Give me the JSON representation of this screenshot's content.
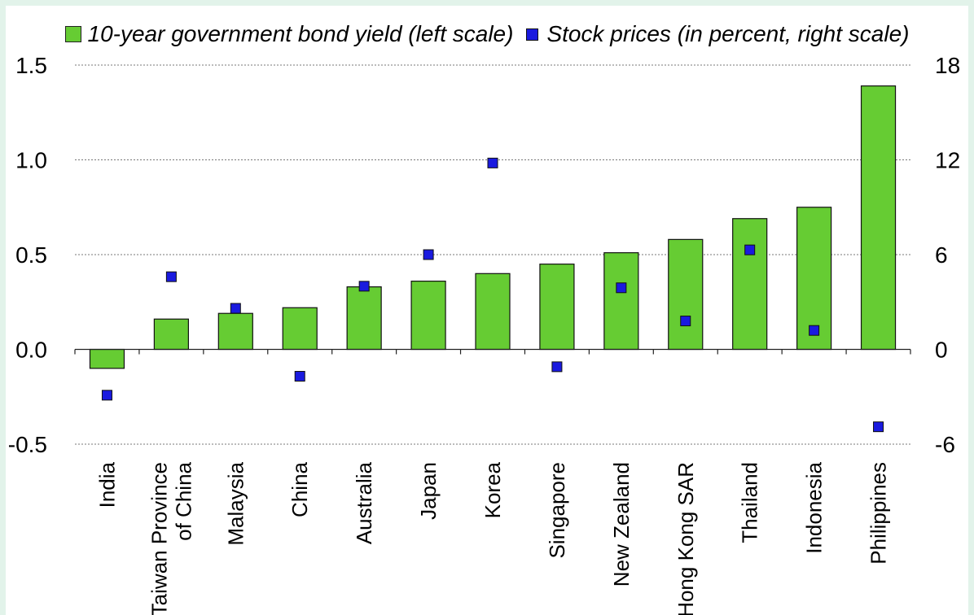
{
  "chart_data": {
    "type": "bar",
    "categories": [
      "India",
      [
        "Taiwan Province",
        "of China"
      ],
      "Malaysia",
      "China",
      "Australia",
      "Japan",
      "Korea",
      "Singapore",
      "New Zealand",
      "Hong Kong SAR",
      "Thailand",
      "Indonesia",
      "Philippines"
    ],
    "series": [
      {
        "name": "10-year government bond yield (left scale)",
        "type": "bar",
        "axis": "left",
        "color": "#66cc33",
        "values": [
          -0.1,
          0.16,
          0.19,
          0.22,
          0.33,
          0.36,
          0.4,
          0.45,
          0.51,
          0.58,
          0.69,
          0.75,
          1.39
        ]
      },
      {
        "name": "Stock prices (in percent, right scale)",
        "type": "scatter",
        "axis": "right",
        "color": "#1a1adf",
        "values": [
          -2.9,
          4.6,
          2.6,
          -1.7,
          4.0,
          6.0,
          11.8,
          -1.1,
          3.9,
          1.8,
          6.3,
          1.2,
          -4.9
        ]
      }
    ],
    "y_left": {
      "min": -0.5,
      "max": 1.5,
      "ticks": [
        "-0.5",
        "0.0",
        "0.5",
        "1.0",
        "1.5"
      ]
    },
    "y_right": {
      "min": -6,
      "max": 18,
      "ticks": [
        "-6",
        "0",
        "6",
        "12",
        "18"
      ]
    },
    "grid": true,
    "legend_position": "top"
  }
}
